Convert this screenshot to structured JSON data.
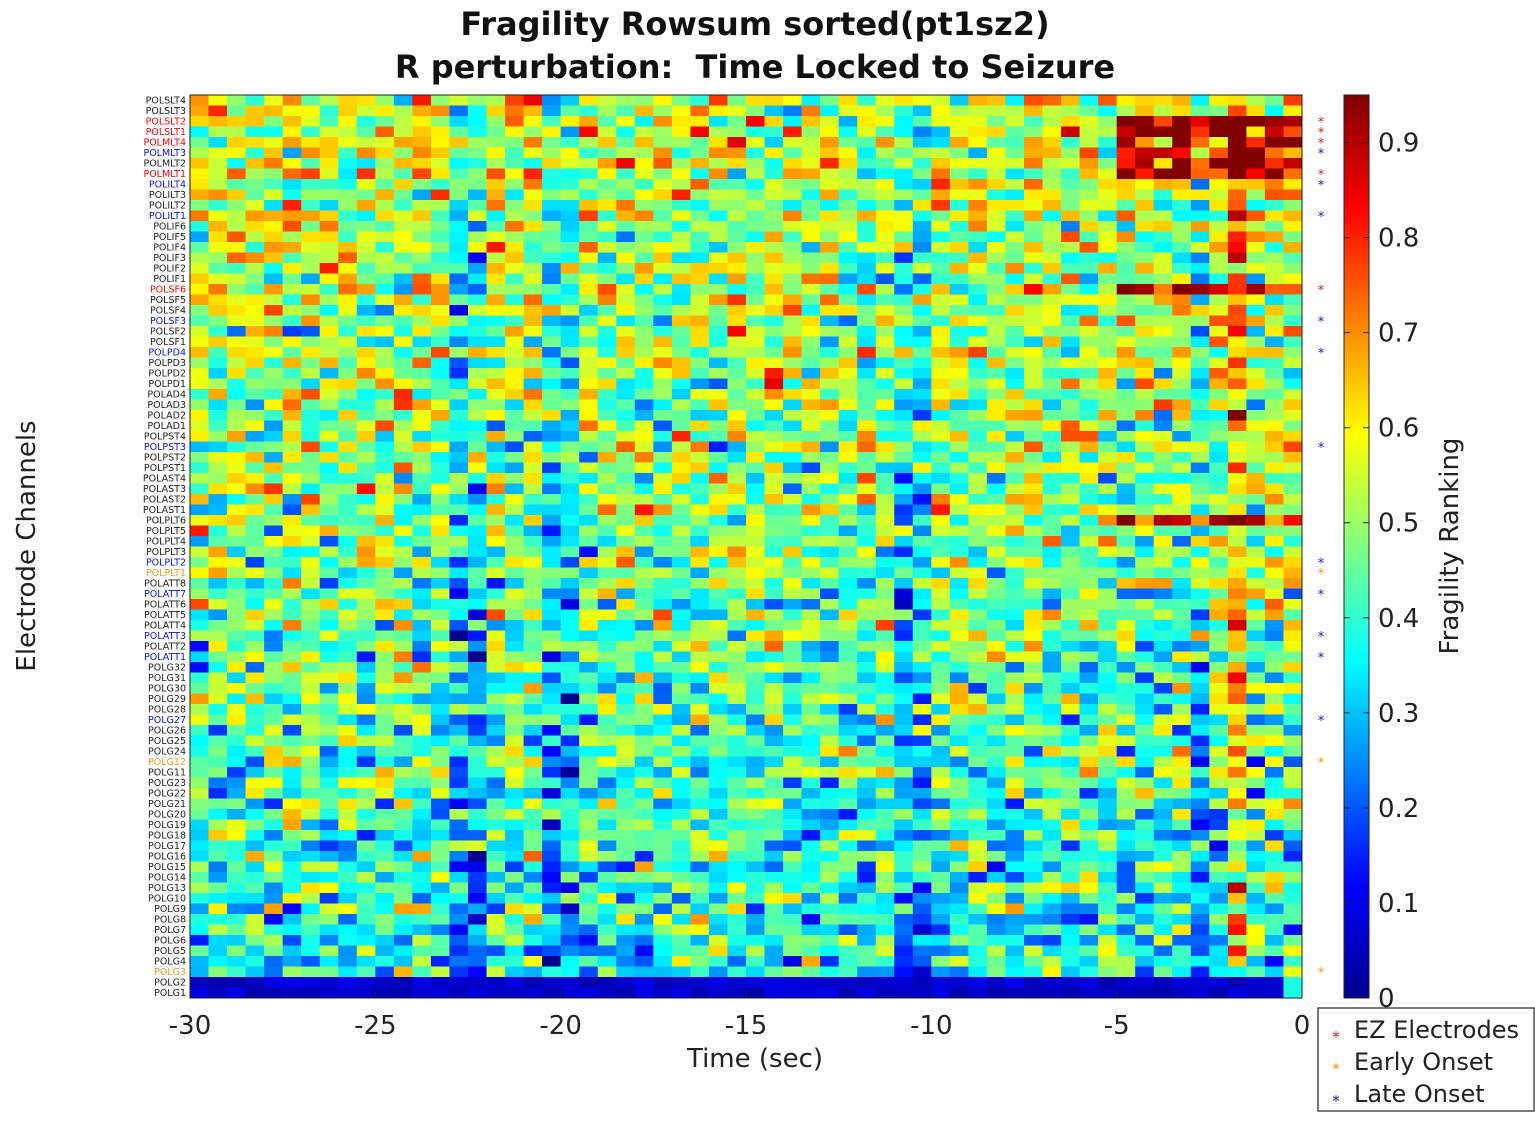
{
  "chart_data": {
    "type": "heatmap",
    "title": "Fragility Rowsum sorted(pt1sz2)",
    "subtitle": "R perturbation:  Time Locked to Seizure",
    "xlabel": "Time (sec)",
    "ylabel": "Electrode Channels",
    "colorbar_label": "Fragility Ranking",
    "colormap": "jet",
    "clim": [
      0,
      0.95
    ],
    "xlim": [
      -30,
      0
    ],
    "x_ticks": [
      "-30",
      "-25",
      "-20",
      "-15",
      "-10",
      "-5",
      "0"
    ],
    "colorbar_ticks": [
      "0",
      "0.1",
      "0.2",
      "0.3",
      "0.4",
      "0.5",
      "0.6",
      "0.7",
      "0.8",
      "0.9"
    ],
    "n_time_windows": 60,
    "channels": [
      {
        "name": "POLSLT4",
        "group": "none"
      },
      {
        "name": "POLSLT3",
        "group": "none"
      },
      {
        "name": "POLSLT2",
        "group": "ez"
      },
      {
        "name": "POLSLT1",
        "group": "ez"
      },
      {
        "name": "POLMLT4",
        "group": "ez"
      },
      {
        "name": "POLMLT3",
        "group": "late"
      },
      {
        "name": "POLMLT2",
        "group": "none"
      },
      {
        "name": "POLMLT1",
        "group": "ez"
      },
      {
        "name": "POLILT4",
        "group": "late"
      },
      {
        "name": "POLILT3",
        "group": "none"
      },
      {
        "name": "POLILT2",
        "group": "none"
      },
      {
        "name": "POLILT1",
        "group": "late"
      },
      {
        "name": "POLIF6",
        "group": "none"
      },
      {
        "name": "POLIF5",
        "group": "none"
      },
      {
        "name": "POLIF4",
        "group": "none"
      },
      {
        "name": "POLIF3",
        "group": "none"
      },
      {
        "name": "POLIF2",
        "group": "none"
      },
      {
        "name": "POLIF1",
        "group": "none"
      },
      {
        "name": "POLSF6",
        "group": "ez"
      },
      {
        "name": "POLSF5",
        "group": "none"
      },
      {
        "name": "POLSF4",
        "group": "none"
      },
      {
        "name": "POLSF3",
        "group": "late"
      },
      {
        "name": "POLSF2",
        "group": "none"
      },
      {
        "name": "POLSF1",
        "group": "none"
      },
      {
        "name": "POLPD4",
        "group": "late"
      },
      {
        "name": "POLPD3",
        "group": "none"
      },
      {
        "name": "POLPD2",
        "group": "none"
      },
      {
        "name": "POLPD1",
        "group": "none"
      },
      {
        "name": "POLAD4",
        "group": "none"
      },
      {
        "name": "POLAD3",
        "group": "none"
      },
      {
        "name": "POLAD2",
        "group": "none"
      },
      {
        "name": "POLAD1",
        "group": "none"
      },
      {
        "name": "POLPST4",
        "group": "none"
      },
      {
        "name": "POLPST3",
        "group": "late"
      },
      {
        "name": "POLPST2",
        "group": "none"
      },
      {
        "name": "POLPST1",
        "group": "none"
      },
      {
        "name": "POLAST4",
        "group": "none"
      },
      {
        "name": "POLAST3",
        "group": "none"
      },
      {
        "name": "POLAST2",
        "group": "none"
      },
      {
        "name": "POLAST1",
        "group": "none"
      },
      {
        "name": "POLPLT6",
        "group": "none"
      },
      {
        "name": "POLPLT5",
        "group": "none"
      },
      {
        "name": "POLPLT4",
        "group": "none"
      },
      {
        "name": "POLPLT3",
        "group": "none"
      },
      {
        "name": "POLPLT2",
        "group": "late"
      },
      {
        "name": "POLPLT1",
        "group": "early"
      },
      {
        "name": "POLATT8",
        "group": "none"
      },
      {
        "name": "POLATT7",
        "group": "late"
      },
      {
        "name": "POLATT6",
        "group": "none"
      },
      {
        "name": "POLATT5",
        "group": "none"
      },
      {
        "name": "POLATT4",
        "group": "none"
      },
      {
        "name": "POLATT3",
        "group": "late"
      },
      {
        "name": "POLATT2",
        "group": "none"
      },
      {
        "name": "POLATT1",
        "group": "late"
      },
      {
        "name": "POLG32",
        "group": "none"
      },
      {
        "name": "POLG31",
        "group": "none"
      },
      {
        "name": "POLG30",
        "group": "none"
      },
      {
        "name": "POLG29",
        "group": "none"
      },
      {
        "name": "POLG28",
        "group": "none"
      },
      {
        "name": "POLG27",
        "group": "late"
      },
      {
        "name": "POLG26",
        "group": "none"
      },
      {
        "name": "POLG25",
        "group": "none"
      },
      {
        "name": "POLG24",
        "group": "none"
      },
      {
        "name": "POLG12",
        "group": "early"
      },
      {
        "name": "POLG11",
        "group": "none"
      },
      {
        "name": "POLG23",
        "group": "none"
      },
      {
        "name": "POLG22",
        "group": "none"
      },
      {
        "name": "POLG21",
        "group": "none"
      },
      {
        "name": "POLG20",
        "group": "none"
      },
      {
        "name": "POLG19",
        "group": "none"
      },
      {
        "name": "POLG18",
        "group": "none"
      },
      {
        "name": "POLG17",
        "group": "none"
      },
      {
        "name": "POLG16",
        "group": "none"
      },
      {
        "name": "POLG15",
        "group": "none"
      },
      {
        "name": "POLG14",
        "group": "none"
      },
      {
        "name": "POLG13",
        "group": "none"
      },
      {
        "name": "POLG10",
        "group": "none"
      },
      {
        "name": "POLG9",
        "group": "none"
      },
      {
        "name": "POLG8",
        "group": "none"
      },
      {
        "name": "POLG7",
        "group": "none"
      },
      {
        "name": "POLG6",
        "group": "none"
      },
      {
        "name": "POLG5",
        "group": "none"
      },
      {
        "name": "POLG4",
        "group": "none"
      },
      {
        "name": "POLG3",
        "group": "early"
      },
      {
        "name": "POLG2",
        "group": "none"
      },
      {
        "name": "POLG1",
        "group": "none"
      }
    ],
    "legend": {
      "placement": "bottom-right",
      "entries": [
        {
          "key": "ez",
          "label": "EZ Electrodes",
          "color": "#cc1f1f"
        },
        {
          "key": "early",
          "label": "Early Onset",
          "color": "#f0901a"
        },
        {
          "key": "late",
          "label": "Late Onset",
          "color": "#1515cc"
        }
      ]
    },
    "label_colors": {
      "ez": "#ff0000",
      "early": "#f59a1f",
      "late": "#1010e6",
      "none": "#222222"
    }
  }
}
